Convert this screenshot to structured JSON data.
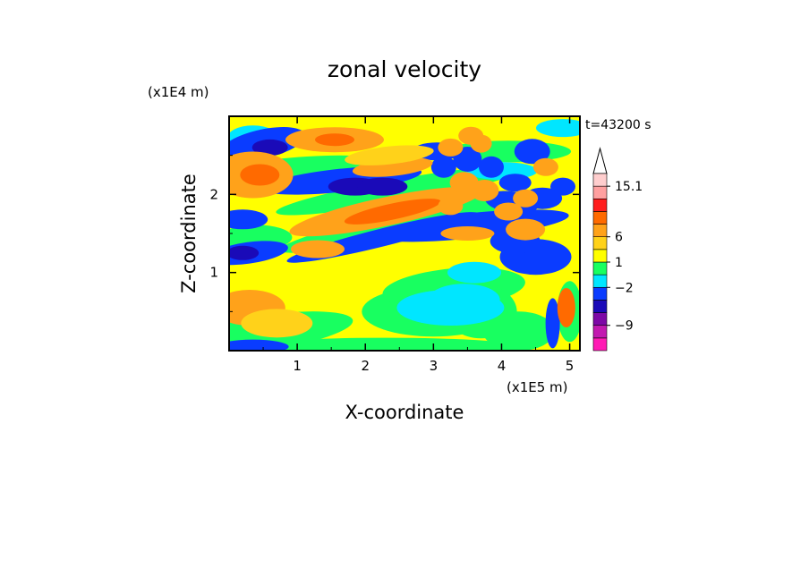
{
  "chart_data": {
    "type": "heatmap",
    "title": "zonal velocity",
    "xlabel": "X-coordinate",
    "ylabel": "Z-coordinate",
    "x_scale_label": "(x1E5 m)",
    "y_scale_label": "(x1E4 m)",
    "time_label": "t=43200 s",
    "xlim": [
      0,
      5.15
    ],
    "ylim": [
      0,
      3.0
    ],
    "x_ticks": [
      1,
      2,
      3,
      4,
      5
    ],
    "y_ticks": [
      1,
      2
    ],
    "colorbar": {
      "labeled_ticks": [
        "15.1",
        "6",
        "1",
        "−2",
        "−9"
      ],
      "levels": [
        {
          "color": "#ff1bb4"
        },
        {
          "color": "#c21ab0"
        },
        {
          "color": "#7d09a6"
        },
        {
          "color": "#1a0ab8"
        },
        {
          "color": "#0a3cff"
        },
        {
          "color": "#00e6ff"
        },
        {
          "color": "#18ff60"
        },
        {
          "color": "#ffff00"
        },
        {
          "color": "#ffd21a"
        },
        {
          "color": "#ffa21a"
        },
        {
          "color": "#ff6a00"
        },
        {
          "color": "#ff1e1e"
        },
        {
          "color": "#ffa0a0"
        },
        {
          "color": "#ffcece"
        }
      ],
      "overflow_arrow_color": "#ffffff"
    }
  }
}
